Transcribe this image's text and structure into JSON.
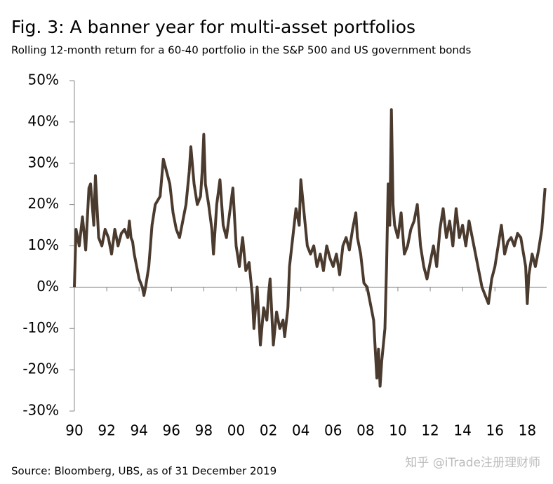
{
  "chart_data": {
    "type": "line",
    "title": "Fig. 3: A banner year for multi-asset portfolios",
    "subtitle": "Rolling 12-month return for a 60-40 portfolio in the S&P 500 and US government bonds",
    "source": "Source: Bloomberg, UBS, as of 31 December 2019",
    "watermark": "知乎 @iTrade注册理财师",
    "color": "#4b3b2f",
    "x": [
      1990.0,
      1990.1,
      1990.3,
      1990.5,
      1990.7,
      1990.9,
      1991.0,
      1991.2,
      1991.3,
      1991.5,
      1991.7,
      1991.9,
      1992.1,
      1992.3,
      1992.5,
      1992.7,
      1992.9,
      1993.1,
      1993.3,
      1993.4,
      1993.5,
      1993.6,
      1993.7,
      1993.9,
      1994.0,
      1994.2,
      1994.3,
      1994.4,
      1994.6,
      1994.8,
      1995.0,
      1995.3,
      1995.5,
      1995.7,
      1995.9,
      1996.1,
      1996.3,
      1996.5,
      1996.7,
      1996.9,
      1997.1,
      1997.2,
      1997.4,
      1997.6,
      1997.8,
      1997.9,
      1998.0,
      1998.1,
      1998.3,
      1998.5,
      1998.6,
      1998.8,
      1999.0,
      1999.2,
      1999.4,
      1999.6,
      1999.8,
      2000.0,
      2000.2,
      2000.4,
      2000.6,
      2000.8,
      2001.0,
      2001.1,
      2001.3,
      2001.5,
      2001.7,
      2001.9,
      2002.0,
      2002.1,
      2002.3,
      2002.5,
      2002.7,
      2002.9,
      2003.0,
      2003.2,
      2003.3,
      2003.5,
      2003.7,
      2003.9,
      2004.0,
      2004.2,
      2004.4,
      2004.6,
      2004.8,
      2005.0,
      2005.2,
      2005.4,
      2005.6,
      2005.8,
      2006.0,
      2006.2,
      2006.4,
      2006.6,
      2006.8,
      2007.0,
      2007.2,
      2007.4,
      2007.5,
      2007.7,
      2007.9,
      2008.1,
      2008.3,
      2008.5,
      2008.7,
      2008.8,
      2008.9,
      2009.0,
      2009.2,
      2009.3,
      2009.4,
      2009.5,
      2009.6,
      2009.7,
      2009.8,
      2010.0,
      2010.2,
      2010.4,
      2010.6,
      2010.8,
      2011.0,
      2011.2,
      2011.4,
      2011.6,
      2011.8,
      2012.0,
      2012.2,
      2012.4,
      2012.6,
      2012.8,
      2013.0,
      2013.2,
      2013.4,
      2013.6,
      2013.8,
      2014.0,
      2014.2,
      2014.4,
      2014.6,
      2014.8,
      2015.0,
      2015.2,
      2015.4,
      2015.6,
      2015.8,
      2016.0,
      2016.2,
      2016.4,
      2016.6,
      2016.8,
      2017.0,
      2017.2,
      2017.4,
      2017.6,
      2017.9,
      2018.0,
      2018.1,
      2018.3,
      2018.5,
      2018.7,
      2018.9,
      2019.1
    ],
    "values": [
      0,
      14,
      10,
      17,
      9,
      24,
      25,
      15,
      27,
      12,
      10,
      14,
      12,
      8,
      14,
      10,
      13,
      14,
      12,
      16,
      12,
      11,
      8,
      4,
      2,
      0,
      -2,
      0,
      5,
      15,
      20,
      22,
      31,
      28,
      25,
      18,
      14,
      12,
      16,
      20,
      28,
      34,
      25,
      20,
      22,
      28,
      37,
      25,
      20,
      14,
      8,
      20,
      26,
      15,
      12,
      18,
      24,
      10,
      5,
      12,
      4,
      6,
      -2,
      -10,
      0,
      -14,
      -5,
      -8,
      -2,
      2,
      -14,
      -6,
      -10,
      -8,
      -12,
      -5,
      5,
      12,
      19,
      15,
      26,
      18,
      10,
      8,
      10,
      5,
      8,
      4,
      10,
      7,
      5,
      8,
      3,
      10,
      12,
      9,
      14,
      18,
      12,
      8,
      1,
      0,
      -4,
      -8,
      -22,
      -15,
      -24,
      -18,
      -10,
      5,
      25,
      15,
      43,
      20,
      15,
      12,
      18,
      8,
      10,
      14,
      16,
      20,
      10,
      5,
      2,
      6,
      10,
      5,
      14,
      19,
      12,
      16,
      10,
      19,
      12,
      15,
      10,
      16,
      12,
      8,
      4,
      0,
      -2,
      -4,
      2,
      5,
      10,
      15,
      8,
      11,
      12,
      10,
      13,
      12,
      5,
      -4,
      3,
      8,
      5,
      9,
      14,
      24
    ],
    "xlim": [
      1990,
      2019.2
    ],
    "ylim": [
      -30,
      50
    ],
    "xticks": [
      {
        "value": 1990,
        "label": "90"
      },
      {
        "value": 1992,
        "label": "92"
      },
      {
        "value": 1994,
        "label": "94"
      },
      {
        "value": 1996,
        "label": "96"
      },
      {
        "value": 1998,
        "label": "98"
      },
      {
        "value": 2000,
        "label": "00"
      },
      {
        "value": 2002,
        "label": "02"
      },
      {
        "value": 2004,
        "label": "04"
      },
      {
        "value": 2006,
        "label": "06"
      },
      {
        "value": 2008,
        "label": "08"
      },
      {
        "value": 2010,
        "label": "10"
      },
      {
        "value": 2012,
        "label": "12"
      },
      {
        "value": 2014,
        "label": "14"
      },
      {
        "value": 2016,
        "label": "16"
      },
      {
        "value": 2018,
        "label": "18"
      }
    ],
    "yticks": [
      {
        "value": -30,
        "label": "-30%"
      },
      {
        "value": -20,
        "label": "-20%"
      },
      {
        "value": -10,
        "label": "-10%"
      },
      {
        "value": 0,
        "label": "0%"
      },
      {
        "value": 10,
        "label": "10%"
      },
      {
        "value": 20,
        "label": "20%"
      },
      {
        "value": 30,
        "label": "30%"
      },
      {
        "value": 40,
        "label": "40%"
      },
      {
        "value": 50,
        "label": "50%"
      }
    ]
  }
}
